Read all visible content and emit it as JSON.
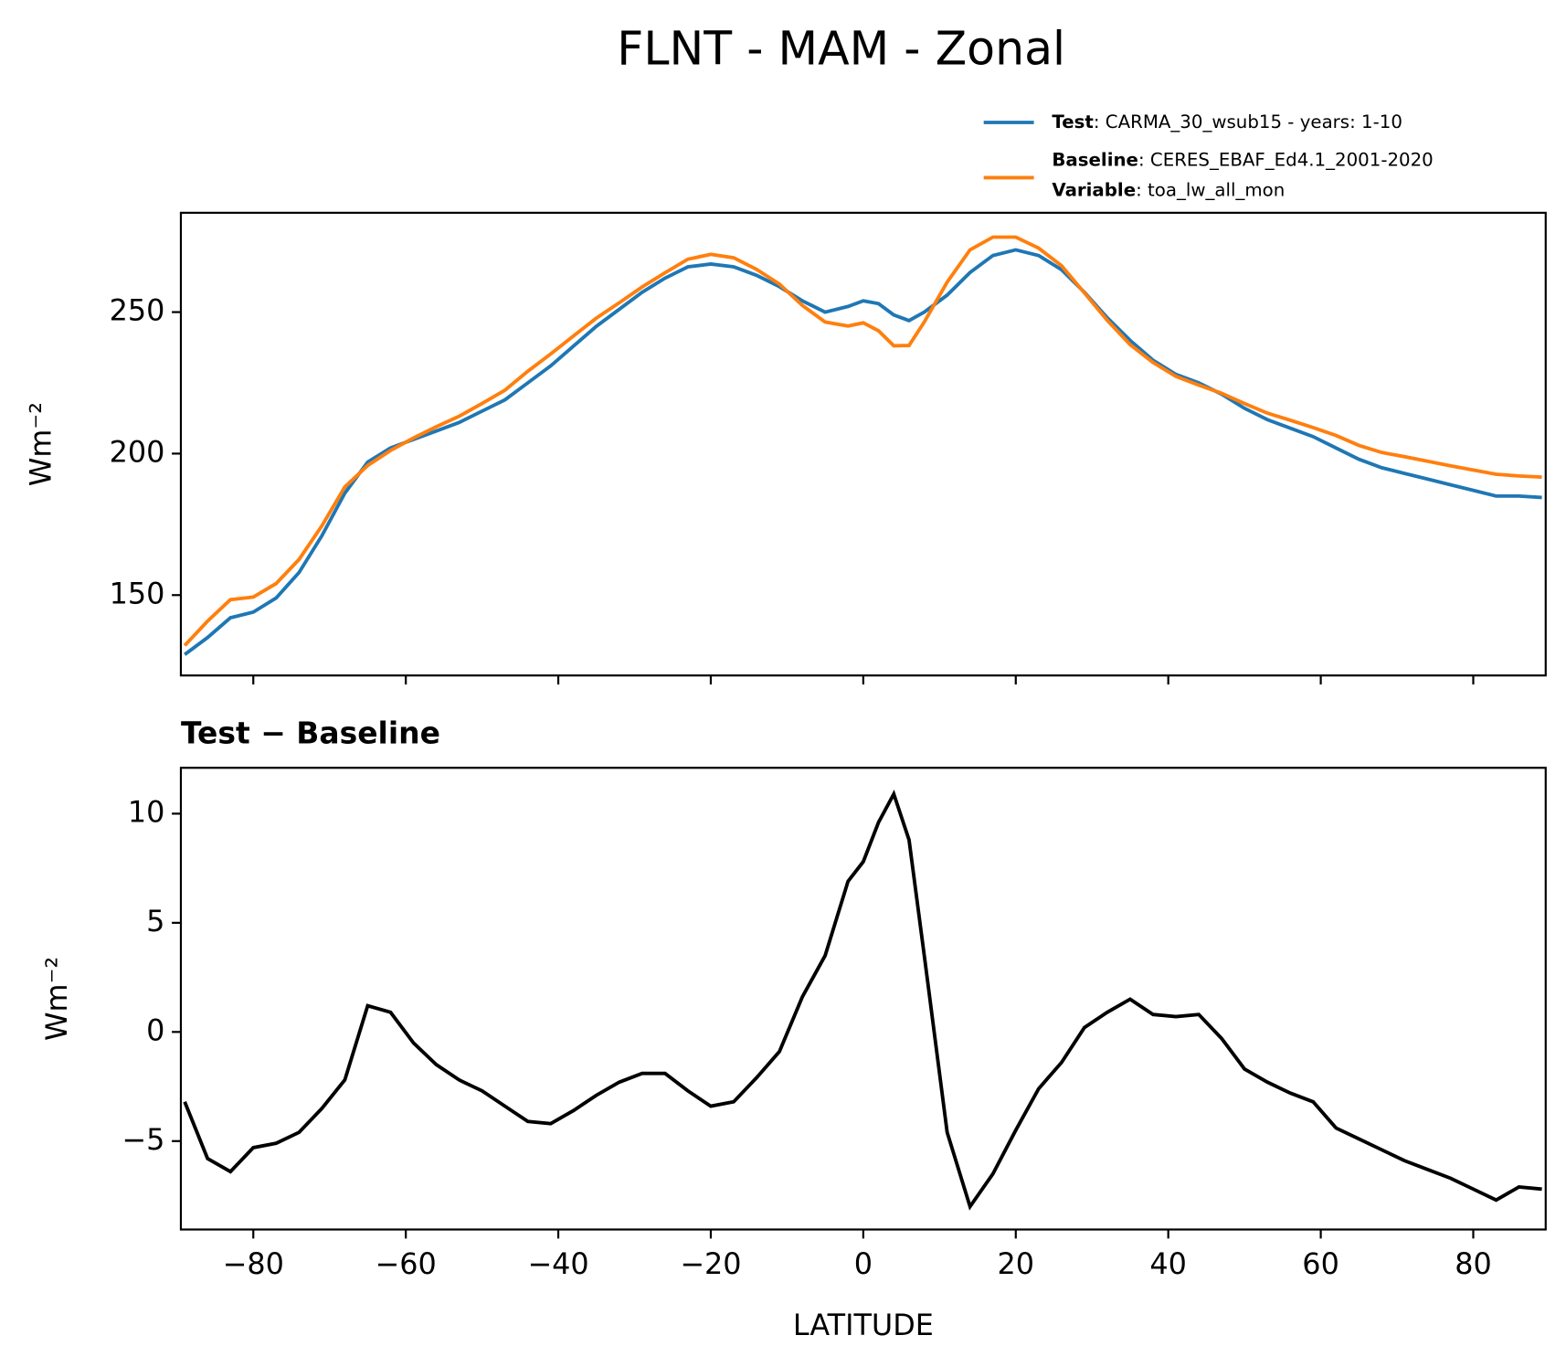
{
  "title": "FLNT - MAM - Zonal",
  "chart_data": [
    {
      "type": "line",
      "ylabel": "Wm⁻²",
      "x": [
        -89,
        -86,
        -83,
        -80,
        -77,
        -74,
        -71,
        -68,
        -65,
        -62,
        -59,
        -56,
        -53,
        -50,
        -47,
        -44,
        -41,
        -38,
        -35,
        -32,
        -29,
        -26,
        -23,
        -20,
        -17,
        -14,
        -11,
        -8,
        -5,
        -2,
        0,
        2,
        4,
        6,
        8,
        11,
        14,
        17,
        20,
        23,
        26,
        29,
        32,
        35,
        38,
        41,
        44,
        47,
        50,
        53,
        56,
        59,
        62,
        65,
        68,
        71,
        74,
        77,
        80,
        83,
        86,
        89
      ],
      "series": [
        {
          "name": "Test",
          "description": ": CARMA_30_wsub15 - years: 1-10",
          "color": "#1f77b4",
          "values": [
            129,
            135,
            142,
            144,
            149,
            158,
            171,
            186,
            197,
            202,
            205,
            208,
            211,
            215,
            219,
            225,
            231,
            238,
            245,
            251,
            257,
            262,
            266,
            267,
            266,
            263,
            259,
            254,
            250,
            252,
            254,
            253,
            249,
            247,
            250,
            256,
            264,
            270,
            272,
            270,
            265,
            257,
            248,
            240,
            233,
            228,
            225,
            221,
            216,
            212,
            209,
            206,
            202,
            198,
            195,
            193,
            191,
            189,
            187,
            185,
            185,
            184.5
          ]
        },
        {
          "name": "Baseline",
          "description": ": CERES_EBAF_Ed4.1_2001-2020",
          "extra_name": "Variable",
          "extra_description": ": toa_lw_all_mon",
          "color": "#ff7f0e",
          "values": [
            132.2,
            140.8,
            148.4,
            149.3,
            154.1,
            162.6,
            174.5,
            188.2,
            195.8,
            201.1,
            205.5,
            209.5,
            213.2,
            217.7,
            222.4,
            229.1,
            235.2,
            241.6,
            247.9,
            253.3,
            258.9,
            263.9,
            268.7,
            270.4,
            269.2,
            265.1,
            259.9,
            252.4,
            246.5,
            245.1,
            246.2,
            243.4,
            238.1,
            238.2,
            246.5,
            260.6,
            272,
            276.5,
            276.5,
            272.6,
            266.4,
            256.8,
            247.1,
            238.5,
            232.2,
            227.3,
            224.2,
            221.3,
            217.7,
            214.3,
            211.8,
            209.2,
            206.4,
            202.9,
            200.4,
            198.9,
            197.3,
            195.7,
            194.2,
            192.7,
            192.1,
            191.7
          ]
        }
      ],
      "xlim": [
        -89.5,
        89.5
      ],
      "xticks": [
        -80,
        -60,
        -40,
        -20,
        0,
        20,
        40,
        60,
        80
      ],
      "ylim": [
        121.6,
        285.1
      ],
      "yticks": [
        150,
        200,
        250
      ]
    },
    {
      "type": "line",
      "title": "Test − Baseline",
      "ylabel": "Wm⁻²",
      "xlabel": "LATITUDE",
      "x": [
        -89,
        -86,
        -83,
        -80,
        -77,
        -74,
        -71,
        -68,
        -65,
        -62,
        -59,
        -56,
        -53,
        -50,
        -47,
        -44,
        -41,
        -38,
        -35,
        -32,
        -29,
        -26,
        -23,
        -20,
        -17,
        -14,
        -11,
        -8,
        -5,
        -2,
        0,
        2,
        4,
        6,
        8,
        11,
        14,
        17,
        20,
        23,
        26,
        29,
        32,
        35,
        38,
        41,
        44,
        47,
        50,
        53,
        56,
        59,
        62,
        65,
        68,
        71,
        74,
        77,
        80,
        83,
        86,
        89
      ],
      "series": [
        {
          "color": "#000000",
          "values": [
            -3.2,
            -5.8,
            -6.4,
            -5.3,
            -5.1,
            -4.6,
            -3.5,
            -2.2,
            1.2,
            0.9,
            -0.5,
            -1.5,
            -2.2,
            -2.7,
            -3.4,
            -4.1,
            -4.2,
            -3.6,
            -2.9,
            -2.3,
            -1.9,
            -1.9,
            -2.7,
            -3.4,
            -3.2,
            -2.1,
            -0.9,
            1.6,
            3.5,
            6.9,
            7.8,
            9.6,
            10.9,
            8.8,
            3.5,
            -4.6,
            -8.0,
            -6.5,
            -4.5,
            -2.6,
            -1.4,
            0.2,
            0.9,
            1.5,
            0.8,
            0.7,
            0.8,
            -0.3,
            -1.7,
            -2.3,
            -2.8,
            -3.2,
            -4.4,
            -4.9,
            -5.4,
            -5.9,
            -6.3,
            -6.7,
            -7.2,
            -7.7,
            -7.1,
            -7.2
          ]
        }
      ],
      "xlim": [
        -89.5,
        89.5
      ],
      "xticks": [
        {
          "value": -80,
          "label": "−80"
        },
        {
          "value": -60,
          "label": "−60"
        },
        {
          "value": -40,
          "label": "−40"
        },
        {
          "value": -20,
          "label": "−20"
        },
        0,
        20,
        40,
        60,
        80
      ],
      "ylim": [
        -9.05,
        12.1
      ],
      "yticks": [
        {
          "value": -5,
          "label": "−5"
        },
        0,
        5,
        10
      ]
    }
  ]
}
